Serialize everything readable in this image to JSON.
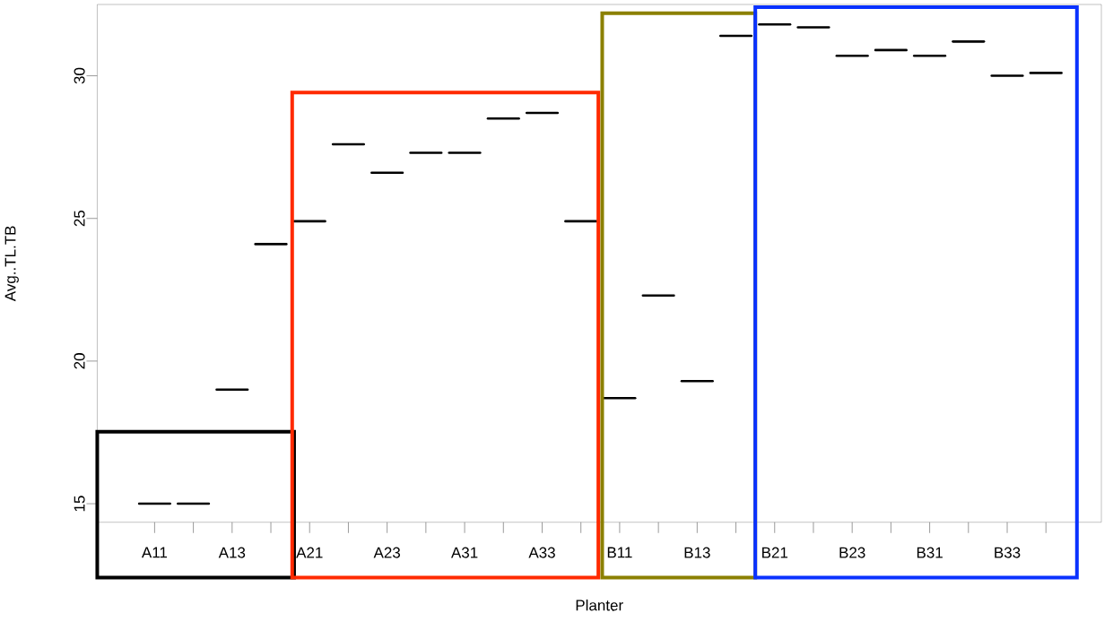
{
  "chart_data": {
    "type": "box",
    "xlabel": "Planter",
    "ylabel": "Avg..TL.TB",
    "categories": [
      "A11",
      null,
      "A13",
      null,
      "A21",
      null,
      "A23",
      null,
      "A31",
      null,
      "A33",
      null,
      "B11",
      null,
      "B13",
      null,
      "B21",
      null,
      "B23",
      null,
      "B31",
      null,
      "B33",
      null
    ],
    "boxes": [
      {
        "low": 15.0,
        "q1": 15.0,
        "median": 15.0,
        "q3": 15.0,
        "high": 15.0
      },
      {
        "low": 15.0,
        "q1": 15.0,
        "median": 15.0,
        "q3": 15.0,
        "high": 15.0
      },
      {
        "low": 19.0,
        "q1": 19.0,
        "median": 19.0,
        "q3": 19.0,
        "high": 19.0
      },
      {
        "low": 24.1,
        "q1": 24.1,
        "median": 24.1,
        "q3": 24.1,
        "high": 24.1
      },
      {
        "low": 24.9,
        "q1": 24.9,
        "median": 24.9,
        "q3": 24.9,
        "high": 24.9
      },
      {
        "low": 27.6,
        "q1": 27.6,
        "median": 27.6,
        "q3": 27.6,
        "high": 27.6
      },
      {
        "low": 26.6,
        "q1": 26.6,
        "median": 26.6,
        "q3": 26.6,
        "high": 26.6
      },
      {
        "low": 27.3,
        "q1": 27.3,
        "median": 27.3,
        "q3": 27.3,
        "high": 27.3
      },
      {
        "low": 27.3,
        "q1": 27.3,
        "median": 27.3,
        "q3": 27.3,
        "high": 27.3
      },
      {
        "low": 28.5,
        "q1": 28.5,
        "median": 28.5,
        "q3": 28.5,
        "high": 28.5
      },
      {
        "low": 28.7,
        "q1": 28.7,
        "median": 28.7,
        "q3": 28.7,
        "high": 28.7
      },
      {
        "low": 24.9,
        "q1": 24.9,
        "median": 24.9,
        "q3": 24.9,
        "high": 24.9
      },
      {
        "low": 18.7,
        "q1": 18.7,
        "median": 18.7,
        "q3": 18.7,
        "high": 18.7
      },
      {
        "low": 22.3,
        "q1": 22.3,
        "median": 22.3,
        "q3": 22.3,
        "high": 22.3
      },
      {
        "low": 19.3,
        "q1": 19.3,
        "median": 19.3,
        "q3": 19.3,
        "high": 19.3
      },
      {
        "low": 31.4,
        "q1": 31.4,
        "median": 31.4,
        "q3": 31.4,
        "high": 31.4
      },
      {
        "low": 31.8,
        "q1": 31.8,
        "median": 31.8,
        "q3": 31.8,
        "high": 31.8
      },
      {
        "low": 31.7,
        "q1": 31.7,
        "median": 31.7,
        "q3": 31.7,
        "high": 31.7
      },
      {
        "low": 30.7,
        "q1": 30.7,
        "median": 30.7,
        "q3": 30.7,
        "high": 30.7
      },
      {
        "low": 30.9,
        "q1": 30.9,
        "median": 30.9,
        "q3": 30.9,
        "high": 30.9
      },
      {
        "low": 30.7,
        "q1": 30.7,
        "median": 30.7,
        "q3": 30.7,
        "high": 30.7
      },
      {
        "low": 31.2,
        "q1": 31.2,
        "median": 31.2,
        "q3": 31.2,
        "high": 31.2
      },
      {
        "low": 30.0,
        "q1": 30.0,
        "median": 30.0,
        "q3": 30.0,
        "high": 30.0
      },
      {
        "low": 30.1,
        "q1": 30.1,
        "median": 30.1,
        "q3": 30.1,
        "high": 30.1
      }
    ],
    "color": "#000000",
    "ylim": [
      14.35,
      32.5
    ],
    "yticks": [
      15,
      20,
      25,
      30
    ]
  }
}
